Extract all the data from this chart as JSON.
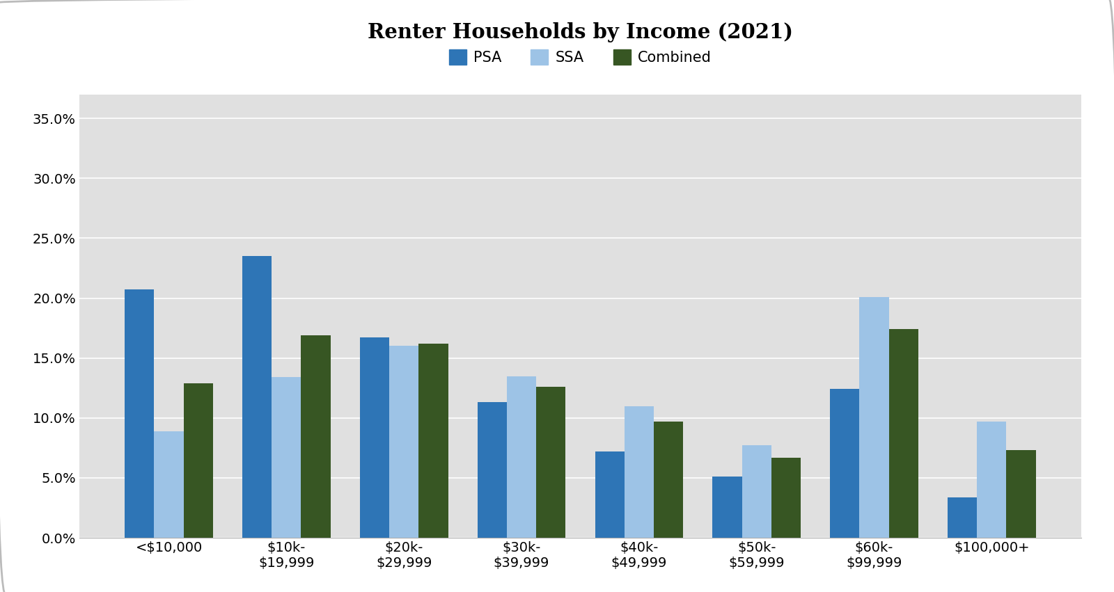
{
  "title": "Renter Households by Income (2021)",
  "categories": [
    "<$10,000",
    "$10k-\n$19,999",
    "$20k-\n$29,999",
    "$30k-\n$39,999",
    "$40k-\n$49,999",
    "$50k-\n$59,999",
    "$60k-\n$99,999",
    "$100,000+"
  ],
  "series": {
    "PSA": [
      0.207,
      0.235,
      0.167,
      0.113,
      0.072,
      0.051,
      0.124,
      0.034
    ],
    "SSA": [
      0.089,
      0.134,
      0.16,
      0.135,
      0.11,
      0.077,
      0.201,
      0.097
    ],
    "Combined": [
      0.129,
      0.169,
      0.162,
      0.126,
      0.097,
      0.067,
      0.174,
      0.073
    ]
  },
  "colors": {
    "PSA": "#2E75B6",
    "SSA": "#9DC3E6",
    "Combined": "#375623"
  },
  "legend_labels": [
    "PSA",
    "SSA",
    "Combined"
  ],
  "ylim": [
    0,
    0.37
  ],
  "yticks": [
    0.0,
    0.05,
    0.1,
    0.15,
    0.2,
    0.25,
    0.3,
    0.35
  ],
  "outer_bg_color": "#FFFFFF",
  "plot_bg_color": "#E0E0E0",
  "bar_width": 0.25,
  "title_fontsize": 21,
  "tick_fontsize": 14,
  "legend_fontsize": 15
}
